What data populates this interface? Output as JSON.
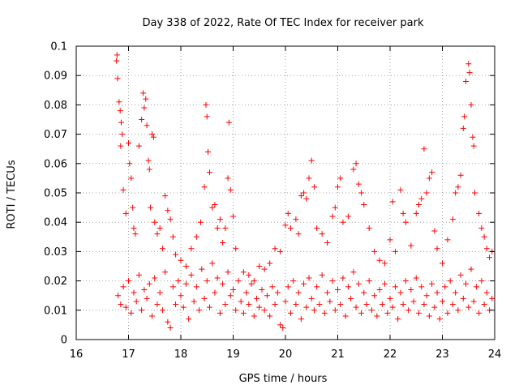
{
  "chart_data": {
    "type": "scatter",
    "title": "Day 338 of 2022, Rate Of TEC Index for receiver park",
    "xlabel": "GPS time / hours",
    "ylabel": "ROTI / TECUs",
    "xlim": [
      16,
      24
    ],
    "ylim": [
      0,
      0.1
    ],
    "x_ticks": [
      "16",
      "17",
      "18",
      "19",
      "20",
      "21",
      "22",
      "23",
      "24"
    ],
    "y_ticks": [
      "0",
      "0.01",
      "0.02",
      "0.03",
      "0.04",
      "0.05",
      "0.06",
      "0.07",
      "0.08",
      "0.09",
      "0.1"
    ],
    "grid": true,
    "marker": "+",
    "color": "#ff0000",
    "series": [
      {
        "name": "ROTI",
        "points": [
          [
            16.78,
            0.097
          ],
          [
            16.77,
            0.095
          ],
          [
            16.79,
            0.089
          ],
          [
            16.82,
            0.081
          ],
          [
            16.84,
            0.078
          ],
          [
            16.86,
            0.074
          ],
          [
            16.88,
            0.07
          ],
          [
            16.85,
            0.066
          ],
          [
            16.9,
            0.051
          ],
          [
            16.95,
            0.043
          ],
          [
            17.0,
            0.067
          ],
          [
            17.02,
            0.06
          ],
          [
            17.05,
            0.055
          ],
          [
            17.08,
            0.045
          ],
          [
            17.1,
            0.038
          ],
          [
            17.13,
            0.036
          ],
          [
            17.2,
            0.066
          ],
          [
            17.25,
            0.075
          ],
          [
            17.28,
            0.084
          ],
          [
            17.3,
            0.079
          ],
          [
            17.33,
            0.082
          ],
          [
            17.35,
            0.073
          ],
          [
            17.38,
            0.061
          ],
          [
            17.4,
            0.058
          ],
          [
            17.45,
            0.07
          ],
          [
            17.48,
            0.069
          ],
          [
            17.42,
            0.045
          ],
          [
            17.5,
            0.04
          ],
          [
            17.55,
            0.036
          ],
          [
            17.6,
            0.038
          ],
          [
            17.7,
            0.049
          ],
          [
            17.75,
            0.044
          ],
          [
            17.8,
            0.041
          ],
          [
            17.65,
            0.031
          ],
          [
            17.85,
            0.035
          ],
          [
            17.9,
            0.029
          ],
          [
            18.0,
            0.027
          ],
          [
            18.1,
            0.025
          ],
          [
            18.2,
            0.031
          ],
          [
            18.3,
            0.035
          ],
          [
            18.38,
            0.04
          ],
          [
            18.45,
            0.052
          ],
          [
            18.48,
            0.08
          ],
          [
            18.5,
            0.076
          ],
          [
            18.52,
            0.064
          ],
          [
            18.55,
            0.057
          ],
          [
            18.6,
            0.045
          ],
          [
            18.65,
            0.046
          ],
          [
            18.7,
            0.038
          ],
          [
            18.75,
            0.041
          ],
          [
            18.8,
            0.033
          ],
          [
            18.85,
            0.038
          ],
          [
            18.9,
            0.055
          ],
          [
            18.92,
            0.074
          ],
          [
            18.95,
            0.051
          ],
          [
            19.0,
            0.042
          ],
          [
            19.05,
            0.031
          ],
          [
            19.2,
            0.023
          ],
          [
            19.3,
            0.022
          ],
          [
            19.4,
            0.02
          ],
          [
            19.5,
            0.025
          ],
          [
            19.6,
            0.024
          ],
          [
            19.7,
            0.026
          ],
          [
            19.8,
            0.031
          ],
          [
            19.9,
            0.03
          ],
          [
            20.0,
            0.039
          ],
          [
            20.05,
            0.043
          ],
          [
            20.1,
            0.038
          ],
          [
            20.2,
            0.041
          ],
          [
            20.25,
            0.036
          ],
          [
            20.3,
            0.049
          ],
          [
            20.35,
            0.05
          ],
          [
            20.4,
            0.048
          ],
          [
            20.45,
            0.055
          ],
          [
            20.5,
            0.061
          ],
          [
            20.55,
            0.052
          ],
          [
            20.6,
            0.038
          ],
          [
            20.7,
            0.036
          ],
          [
            20.8,
            0.033
          ],
          [
            20.9,
            0.042
          ],
          [
            20.95,
            0.045
          ],
          [
            21.0,
            0.052
          ],
          [
            21.05,
            0.055
          ],
          [
            21.1,
            0.04
          ],
          [
            21.2,
            0.042
          ],
          [
            21.3,
            0.058
          ],
          [
            21.35,
            0.06
          ],
          [
            21.4,
            0.053
          ],
          [
            21.45,
            0.05
          ],
          [
            21.5,
            0.046
          ],
          [
            21.6,
            0.038
          ],
          [
            21.7,
            0.03
          ],
          [
            21.8,
            0.027
          ],
          [
            21.9,
            0.026
          ],
          [
            22.0,
            0.034
          ],
          [
            22.05,
            0.047
          ],
          [
            22.1,
            0.03
          ],
          [
            22.2,
            0.051
          ],
          [
            22.25,
            0.043
          ],
          [
            22.3,
            0.04
          ],
          [
            22.4,
            0.032
          ],
          [
            22.5,
            0.043
          ],
          [
            22.55,
            0.046
          ],
          [
            22.6,
            0.048
          ],
          [
            22.65,
            0.065
          ],
          [
            22.7,
            0.05
          ],
          [
            22.75,
            0.055
          ],
          [
            22.8,
            0.057
          ],
          [
            22.85,
            0.037
          ],
          [
            22.9,
            0.031
          ],
          [
            23.0,
            0.026
          ],
          [
            23.1,
            0.034
          ],
          [
            23.2,
            0.041
          ],
          [
            23.25,
            0.05
          ],
          [
            23.3,
            0.052
          ],
          [
            23.35,
            0.056
          ],
          [
            23.4,
            0.072
          ],
          [
            23.42,
            0.076
          ],
          [
            23.45,
            0.088
          ],
          [
            23.5,
            0.094
          ],
          [
            23.52,
            0.091
          ],
          [
            23.55,
            0.08
          ],
          [
            23.58,
            0.069
          ],
          [
            23.6,
            0.066
          ],
          [
            23.62,
            0.05
          ],
          [
            23.7,
            0.043
          ],
          [
            23.75,
            0.038
          ],
          [
            23.8,
            0.035
          ],
          [
            23.85,
            0.031
          ],
          [
            23.9,
            0.028
          ],
          [
            23.95,
            0.03
          ],
          [
            16.8,
            0.015
          ],
          [
            16.85,
            0.012
          ],
          [
            16.9,
            0.018
          ],
          [
            16.95,
            0.011
          ],
          [
            17.0,
            0.02
          ],
          [
            17.05,
            0.009
          ],
          [
            17.1,
            0.016
          ],
          [
            17.15,
            0.013
          ],
          [
            17.2,
            0.022
          ],
          [
            17.25,
            0.01
          ],
          [
            17.3,
            0.017
          ],
          [
            17.35,
            0.014
          ],
          [
            17.4,
            0.019
          ],
          [
            17.45,
            0.008
          ],
          [
            17.5,
            0.021
          ],
          [
            17.55,
            0.012
          ],
          [
            17.6,
            0.016
          ],
          [
            17.65,
            0.01
          ],
          [
            17.7,
            0.023
          ],
          [
            17.75,
            0.006
          ],
          [
            17.8,
            0.004
          ],
          [
            17.85,
            0.018
          ],
          [
            17.9,
            0.012
          ],
          [
            17.95,
            0.02
          ],
          [
            18.0,
            0.015
          ],
          [
            18.05,
            0.011
          ],
          [
            18.1,
            0.019
          ],
          [
            18.15,
            0.007
          ],
          [
            18.2,
            0.022
          ],
          [
            18.25,
            0.013
          ],
          [
            18.3,
            0.018
          ],
          [
            18.35,
            0.01
          ],
          [
            18.4,
            0.024
          ],
          [
            18.45,
            0.014
          ],
          [
            18.5,
            0.02
          ],
          [
            18.55,
            0.011
          ],
          [
            18.6,
            0.026
          ],
          [
            18.65,
            0.016
          ],
          [
            18.7,
            0.021
          ],
          [
            18.75,
            0.009
          ],
          [
            18.8,
            0.019
          ],
          [
            18.85,
            0.012
          ],
          [
            18.9,
            0.023
          ],
          [
            18.95,
            0.015
          ],
          [
            19.0,
            0.017
          ],
          [
            19.05,
            0.01
          ],
          [
            19.1,
            0.02
          ],
          [
            19.15,
            0.013
          ],
          [
            19.2,
            0.009
          ],
          [
            19.25,
            0.016
          ],
          [
            19.3,
            0.012
          ],
          [
            19.35,
            0.019
          ],
          [
            19.4,
            0.008
          ],
          [
            19.45,
            0.014
          ],
          [
            19.5,
            0.011
          ],
          [
            19.55,
            0.017
          ],
          [
            19.6,
            0.01
          ],
          [
            19.65,
            0.015
          ],
          [
            19.7,
            0.008
          ],
          [
            19.75,
            0.018
          ],
          [
            19.8,
            0.012
          ],
          [
            19.85,
            0.016
          ],
          [
            19.9,
            0.005
          ],
          [
            19.95,
            0.004
          ],
          [
            20.0,
            0.013
          ],
          [
            20.05,
            0.018
          ],
          [
            20.1,
            0.009
          ],
          [
            20.15,
            0.02
          ],
          [
            20.2,
            0.012
          ],
          [
            20.25,
            0.016
          ],
          [
            20.3,
            0.007
          ],
          [
            20.35,
            0.019
          ],
          [
            20.4,
            0.011
          ],
          [
            20.45,
            0.021
          ],
          [
            20.5,
            0.014
          ],
          [
            20.55,
            0.01
          ],
          [
            20.6,
            0.018
          ],
          [
            20.65,
            0.012
          ],
          [
            20.7,
            0.022
          ],
          [
            20.75,
            0.009
          ],
          [
            20.8,
            0.016
          ],
          [
            20.85,
            0.013
          ],
          [
            20.9,
            0.02
          ],
          [
            20.95,
            0.01
          ],
          [
            21.0,
            0.017
          ],
          [
            21.05,
            0.012
          ],
          [
            21.1,
            0.021
          ],
          [
            21.15,
            0.008
          ],
          [
            21.2,
            0.018
          ],
          [
            21.25,
            0.014
          ],
          [
            21.3,
            0.023
          ],
          [
            21.35,
            0.011
          ],
          [
            21.4,
            0.019
          ],
          [
            21.45,
            0.009
          ],
          [
            21.5,
            0.016
          ],
          [
            21.55,
            0.012
          ],
          [
            21.6,
            0.02
          ],
          [
            21.65,
            0.01
          ],
          [
            21.7,
            0.015
          ],
          [
            21.75,
            0.008
          ],
          [
            21.8,
            0.017
          ],
          [
            21.85,
            0.012
          ],
          [
            21.9,
            0.019
          ],
          [
            21.95,
            0.009
          ],
          [
            22.0,
            0.014
          ],
          [
            22.05,
            0.011
          ],
          [
            22.1,
            0.018
          ],
          [
            22.15,
            0.007
          ],
          [
            22.2,
            0.016
          ],
          [
            22.25,
            0.012
          ],
          [
            22.3,
            0.02
          ],
          [
            22.35,
            0.01
          ],
          [
            22.4,
            0.017
          ],
          [
            22.45,
            0.013
          ],
          [
            22.5,
            0.021
          ],
          [
            22.55,
            0.009
          ],
          [
            22.6,
            0.018
          ],
          [
            22.65,
            0.012
          ],
          [
            22.7,
            0.015
          ],
          [
            22.75,
            0.008
          ],
          [
            22.8,
            0.019
          ],
          [
            22.85,
            0.011
          ],
          [
            22.9,
            0.016
          ],
          [
            22.95,
            0.007
          ],
          [
            23.0,
            0.013
          ],
          [
            23.05,
            0.018
          ],
          [
            23.1,
            0.009
          ],
          [
            23.15,
            0.02
          ],
          [
            23.2,
            0.012
          ],
          [
            23.25,
            0.016
          ],
          [
            23.3,
            0.01
          ],
          [
            23.35,
            0.022
          ],
          [
            23.4,
            0.014
          ],
          [
            23.45,
            0.019
          ],
          [
            23.5,
            0.011
          ],
          [
            23.55,
            0.024
          ],
          [
            23.6,
            0.013
          ],
          [
            23.65,
            0.018
          ],
          [
            23.7,
            0.009
          ],
          [
            23.75,
            0.02
          ],
          [
            23.8,
            0.012
          ],
          [
            23.85,
            0.016
          ],
          [
            23.9,
            0.01
          ],
          [
            23.95,
            0.014
          ]
        ]
      }
    ]
  }
}
